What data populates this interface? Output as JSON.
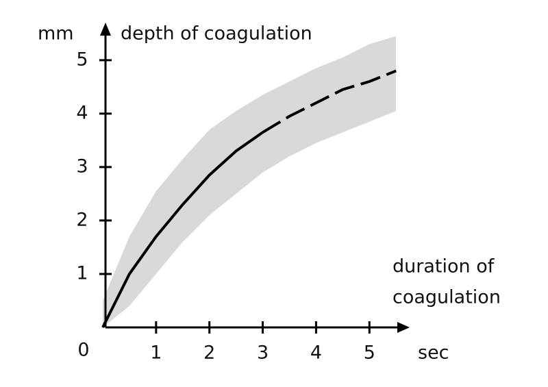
{
  "chart_data": {
    "type": "line",
    "y_unit": "mm",
    "y_label": "depth of coagulation",
    "x_label": [
      "duration of",
      "coagulation"
    ],
    "x_unit": "sec",
    "x": [
      0,
      0.5,
      1,
      1.5,
      2,
      2.5,
      3,
      3.5,
      4,
      4.5,
      5,
      5.5
    ],
    "series": [
      {
        "color": "#000000",
        "dashed": false,
        "values": [
          0,
          1.0,
          1.7,
          2.3,
          2.85,
          3.3,
          3.65,
          null,
          null,
          null,
          null,
          null
        ]
      },
      {
        "color": "#000000",
        "dashed": true,
        "values": [
          null,
          null,
          null,
          null,
          null,
          null,
          3.65,
          3.95,
          4.2,
          4.45,
          4.6,
          4.8
        ]
      }
    ],
    "band_color": "#d9d9d9",
    "band_upper": [
      0.5,
      1.7,
      2.55,
      3.15,
      3.7,
      4.05,
      4.35,
      4.6,
      4.85,
      5.05,
      5.3,
      5.45
    ],
    "band_lower": [
      0,
      0.4,
      1.0,
      1.6,
      2.1,
      2.5,
      2.9,
      3.2,
      3.45,
      3.65,
      3.85,
      4.05
    ],
    "xlim": [
      0,
      5.6
    ],
    "ylim": [
      0,
      5.6
    ],
    "xticks": [
      0,
      1,
      2,
      3,
      4,
      5
    ],
    "yticks": [
      1,
      2,
      3,
      4,
      5
    ],
    "grid": false
  }
}
